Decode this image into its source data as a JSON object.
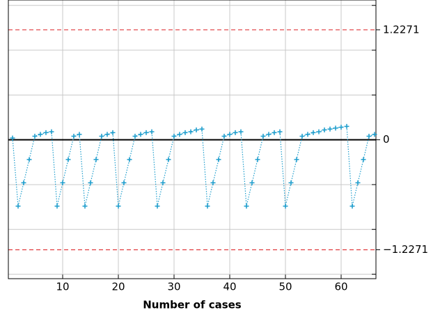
{
  "chart_data": {
    "type": "line",
    "xlabel": "Number of cases",
    "x": [
      1,
      2,
      3,
      4,
      5,
      6,
      7,
      8,
      9,
      10,
      11,
      12,
      13,
      14,
      15,
      16,
      17,
      18,
      19,
      20,
      21,
      22,
      23,
      24,
      25,
      26,
      27,
      28,
      29,
      30,
      31,
      32,
      33,
      34,
      35,
      36,
      37,
      38,
      39,
      40,
      41,
      42,
      43,
      44,
      45,
      46,
      47,
      48,
      49,
      50,
      51,
      52,
      53,
      54,
      55,
      56,
      57,
      58,
      59,
      60,
      61,
      62,
      63,
      64,
      65,
      66
    ],
    "series": [
      {
        "color": "#1a9ccc",
        "values": [
          0.02,
          -0.74,
          -0.48,
          -0.22,
          0.04,
          0.06,
          0.08,
          0.09,
          -0.74,
          -0.48,
          -0.22,
          0.04,
          0.06,
          -0.74,
          -0.48,
          -0.22,
          0.04,
          0.06,
          0.08,
          -0.74,
          -0.48,
          -0.22,
          0.04,
          0.06,
          0.08,
          0.09,
          -0.74,
          -0.48,
          -0.22,
          0.04,
          0.06,
          0.08,
          0.09,
          0.11,
          0.12,
          -0.74,
          -0.48,
          -0.22,
          0.04,
          0.06,
          0.08,
          0.09,
          -0.74,
          -0.48,
          -0.22,
          0.04,
          0.06,
          0.08,
          0.09,
          -0.74,
          -0.48,
          -0.22,
          0.04,
          0.06,
          0.08,
          0.09,
          0.11,
          0.12,
          0.13,
          0.14,
          0.15,
          -0.74,
          -0.48,
          -0.22,
          0.04,
          0.06
        ]
      }
    ],
    "xlim": [
      0.25,
      66.25
    ],
    "xticks": [
      10,
      20,
      30,
      40,
      50,
      60
    ],
    "ylim": [
      -1.55,
      1.56
    ],
    "yticks": [
      {
        "value": -1.2271,
        "label": "−1.2271"
      },
      0,
      1.2271
    ],
    "ytick_line_colors": [
      "#e03a3e",
      "#000000",
      "#e03a3e"
    ],
    "ygrid": [
      -1.5,
      -1,
      -0.5,
      0.5,
      1,
      1.5
    ],
    "grid": true
  }
}
